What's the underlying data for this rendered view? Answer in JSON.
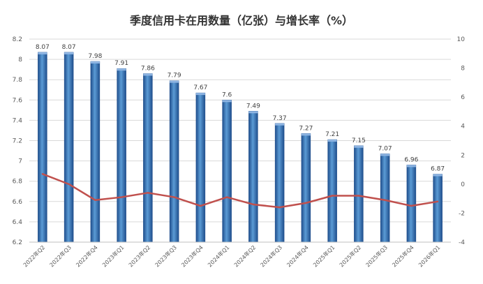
{
  "chart_data": {
    "type": "bar",
    "title": "季度信用卡在用数量（亿张）与增长率（%）",
    "categories": [
      "2022年Q2",
      "2022年Q3",
      "2022年Q4",
      "2023年Q1",
      "2023年Q2",
      "2023年Q3",
      "2023年Q4",
      "2024年Q1",
      "2024年Q2",
      "2024年Q3",
      "2024年Q4",
      "2025年Q1",
      "2025年Q2",
      "2025年Q3",
      "2025年Q4",
      "2026年Q1"
    ],
    "series": [
      {
        "kind": "bar",
        "axis": "left",
        "values": [
          8.07,
          8.07,
          7.98,
          7.91,
          7.86,
          7.79,
          7.67,
          7.6,
          7.49,
          7.37,
          7.27,
          7.21,
          7.15,
          7.07,
          6.96,
          6.87
        ],
        "data_labels": [
          "8.07",
          "8.07",
          "7.98",
          "7.91",
          "7.86",
          "7.79",
          "7.67",
          "7.6",
          "7.49",
          "7.37",
          "7.27",
          "7.21",
          "7.15",
          "7.07",
          "6.96",
          "6.87"
        ]
      },
      {
        "kind": "line",
        "axis": "right",
        "values": [
          0.7,
          0.0,
          -1.1,
          -0.9,
          -0.6,
          -0.9,
          -1.5,
          -0.9,
          -1.4,
          -1.6,
          -1.3,
          -0.8,
          -0.8,
          -1.1,
          -1.5,
          -1.2
        ]
      }
    ],
    "y_left": {
      "min": 6.2,
      "max": 8.2,
      "ticks": [
        "6.2",
        "6.4",
        "6.6",
        "6.8",
        "7",
        "7.2",
        "7.4",
        "7.6",
        "7.8",
        "8",
        "8.2"
      ]
    },
    "y_right": {
      "min": -4,
      "max": 10,
      "ticks": [
        "-4",
        "-2",
        "0",
        "2",
        "4",
        "6",
        "8",
        "10"
      ]
    },
    "grid": true,
    "legend": "none",
    "colors": {
      "bar_dark": "#1F4E8C",
      "bar_light": "#5B9BD5",
      "bar_mid": "#2E75B6",
      "line": "#C0504D",
      "grid": "#D9D9D9"
    }
  }
}
